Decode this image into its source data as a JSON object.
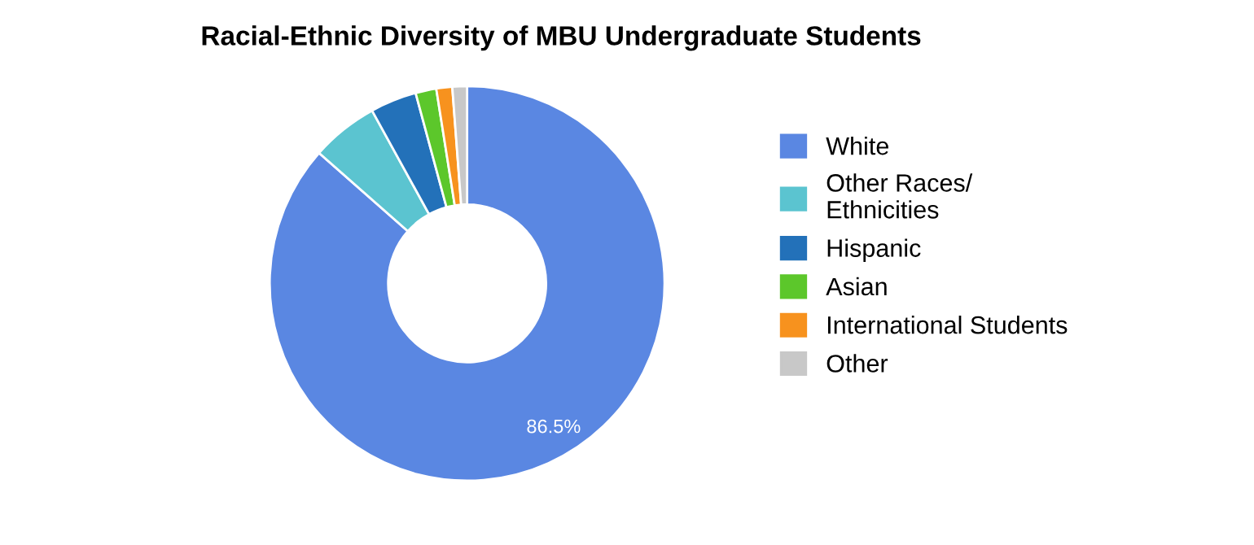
{
  "chart_data": {
    "type": "donut",
    "title": "Racial-Ethnic Diversity of MBU Undergraduate Students",
    "categories": [
      "White",
      "Other Races/ Ethnicities",
      "Hispanic",
      "Asian",
      "International Students",
      "Other"
    ],
    "values": [
      86.5,
      5.5,
      3.8,
      1.7,
      1.3,
      1.2
    ],
    "colors": [
      "#5a87e2",
      "#5bc4d0",
      "#2371b9",
      "#5cc72b",
      "#f7921e",
      "#c8c8c8"
    ],
    "value_labels": [
      "86.5%",
      null,
      null,
      null,
      null,
      null
    ],
    "legend": "right"
  }
}
